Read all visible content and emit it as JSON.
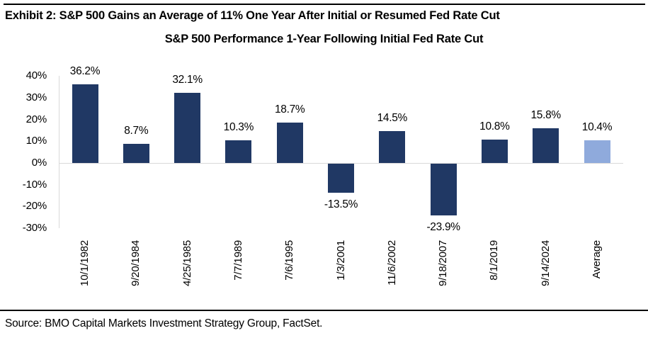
{
  "page": {
    "exhibit_title": "Exhibit 2: S&P 500 Gains an Average of 11% One Year After Initial or Resumed Fed Rate Cut",
    "source_note": "Source: BMO Capital Markets Investment Strategy Group, FactSet."
  },
  "chart_data": {
    "type": "bar",
    "title": "S&P 500 Performance 1-Year Following Initial Fed Rate Cut",
    "categories": [
      "10/1/1982",
      "9/20/1984",
      "4/25/1985",
      "7/7/1989",
      "7/6/1995",
      "1/3/2001",
      "11/6/2002",
      "9/18/2007",
      "8/1/2019",
      "9/14/2024",
      "Average"
    ],
    "values": [
      36.2,
      8.7,
      32.1,
      10.3,
      18.7,
      -13.5,
      14.5,
      -23.9,
      10.8,
      15.8,
      10.4
    ],
    "bar_labels": [
      "36.2%",
      "8.7%",
      "32.1%",
      "10.3%",
      "18.7%",
      "-13.5%",
      "14.5%",
      "-23.9%",
      "10.8%",
      "15.8%",
      "10.4%"
    ],
    "ylabel": "",
    "xlabel": "",
    "yticks": [
      "40%",
      "30%",
      "20%",
      "10%",
      "0%",
      "-10%",
      "-20%",
      "-30%"
    ],
    "ytick_values": [
      40,
      30,
      20,
      10,
      0,
      -10,
      -20,
      -30
    ],
    "ylim": [
      -30,
      40
    ],
    "grid": false,
    "legend": "none",
    "bar_color": "#203864",
    "average_bar_color": "#8FAADC",
    "average_index": 10,
    "axis_line_color": "#D9D9D9"
  }
}
